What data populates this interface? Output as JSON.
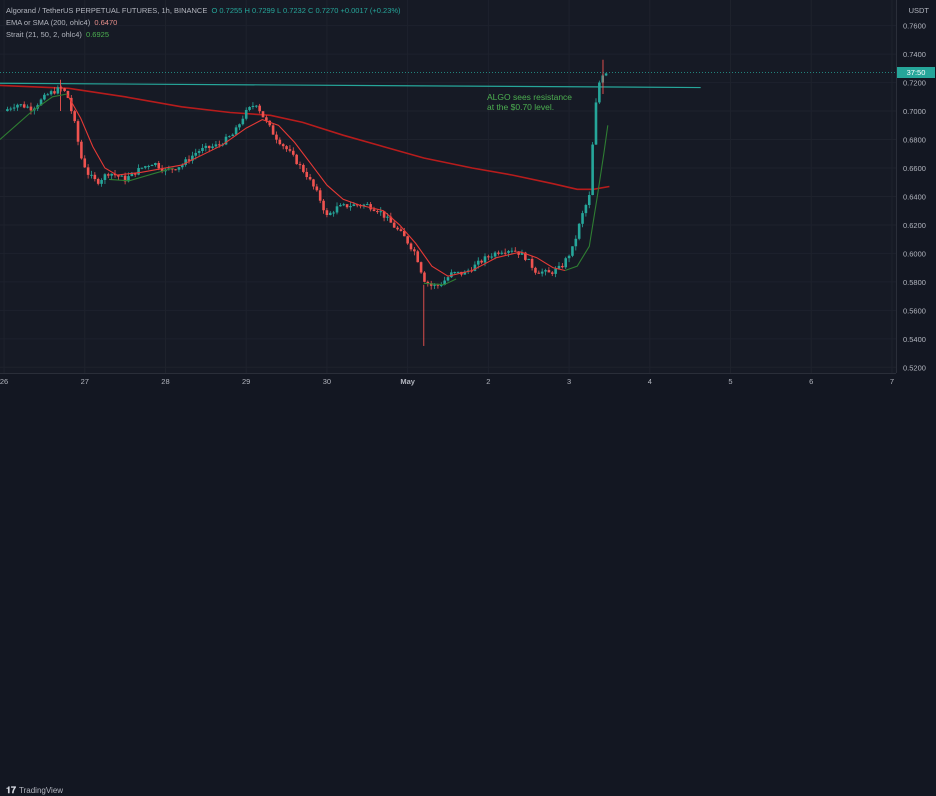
{
  "header": {
    "symbol": "Algorand / TetherUS PERPETUAL FUTURES, 1h, BINANCE",
    "ohlc": "O 0.7255 H 0.7299 L 0.7232 C 0.7270 +0.0017 (+0.23%)",
    "indicator1_label": "EMA or SMA (200, ohlc4)",
    "indicator1_value": "0.6470",
    "indicator2_label": "Strait (21, 50, 2, ohlc4)",
    "indicator2_value": "0.6925"
  },
  "currency": "USDT",
  "price_badge": "37:50",
  "annotation": "ALGO sees resistance\nat the $0.70 level.",
  "footer_brand": "TradingView",
  "colors": {
    "bull": "#26a69a",
    "bear": "#ef5350",
    "ema": "#b71c1c",
    "strait": "#2e7d32",
    "resistance": "#26a69a",
    "annotation": "#4caf50"
  },
  "chart_data": {
    "type": "candlestick",
    "y_ticks": [
      "0.7600",
      "0.7400",
      "0.7200",
      "0.7000",
      "0.6800",
      "0.6600",
      "0.6400",
      "0.6200",
      "0.6000",
      "0.5800",
      "0.5600",
      "0.5400",
      "0.5200"
    ],
    "x_ticks": [
      {
        "label": "26",
        "day": 0
      },
      {
        "label": "27",
        "day": 1
      },
      {
        "label": "28",
        "day": 2
      },
      {
        "label": "29",
        "day": 3
      },
      {
        "label": "30",
        "day": 4
      },
      {
        "label": "May",
        "day": 5
      },
      {
        "label": "2",
        "day": 6
      },
      {
        "label": "3",
        "day": 7
      },
      {
        "label": "4",
        "day": 8
      },
      {
        "label": "5",
        "day": 9
      },
      {
        "label": "6",
        "day": 10
      },
      {
        "label": "7",
        "day": 11
      }
    ],
    "ylim": [
      0.516,
      0.778
    ],
    "xlim_days": [
      -0.05,
      11.05
    ],
    "current_price": 0.727,
    "resistance_line": {
      "x0": -0.05,
      "y0": 0.7195,
      "x1": 8.63,
      "y1": 0.7165
    },
    "price_path": [
      [
        0.0,
        0.7
      ],
      [
        0.15,
        0.705
      ],
      [
        0.35,
        0.702
      ],
      [
        0.55,
        0.712
      ],
      [
        0.7,
        0.716
      ],
      [
        0.78,
        0.712
      ],
      [
        0.88,
        0.69
      ],
      [
        0.95,
        0.668
      ],
      [
        1.05,
        0.655
      ],
      [
        1.15,
        0.65
      ],
      [
        1.3,
        0.657
      ],
      [
        1.5,
        0.652
      ],
      [
        1.7,
        0.66
      ],
      [
        1.85,
        0.664
      ],
      [
        2.0,
        0.658
      ],
      [
        2.2,
        0.662
      ],
      [
        2.4,
        0.672
      ],
      [
        2.65,
        0.676
      ],
      [
        2.85,
        0.684
      ],
      [
        2.98,
        0.698
      ],
      [
        3.12,
        0.706
      ],
      [
        3.22,
        0.695
      ],
      [
        3.35,
        0.683
      ],
      [
        3.55,
        0.67
      ],
      [
        3.75,
        0.655
      ],
      [
        3.9,
        0.64
      ],
      [
        4.0,
        0.626
      ],
      [
        4.12,
        0.632
      ],
      [
        4.3,
        0.634
      ],
      [
        4.5,
        0.634
      ],
      [
        4.65,
        0.63
      ],
      [
        4.78,
        0.622
      ],
      [
        4.95,
        0.612
      ],
      [
        5.1,
        0.6
      ],
      [
        5.2,
        0.582
      ],
      [
        5.3,
        0.577
      ],
      [
        5.4,
        0.578
      ],
      [
        5.55,
        0.586
      ],
      [
        5.7,
        0.586
      ],
      [
        5.85,
        0.592
      ],
      [
        6.0,
        0.598
      ],
      [
        6.15,
        0.602
      ],
      [
        6.3,
        0.603
      ],
      [
        6.45,
        0.598
      ],
      [
        6.58,
        0.588
      ],
      [
        6.75,
        0.586
      ],
      [
        6.9,
        0.59
      ],
      [
        7.05,
        0.604
      ],
      [
        7.15,
        0.625
      ],
      [
        7.25,
        0.64
      ],
      [
        7.32,
        0.7
      ],
      [
        7.38,
        0.722
      ],
      [
        7.43,
        0.728
      ],
      [
        7.48,
        0.727
      ]
    ],
    "ema200": [
      [
        -0.05,
        0.718
      ],
      [
        0.8,
        0.716
      ],
      [
        1.5,
        0.71
      ],
      [
        2.2,
        0.703
      ],
      [
        2.8,
        0.699
      ],
      [
        3.3,
        0.697
      ],
      [
        3.7,
        0.692
      ],
      [
        4.2,
        0.683
      ],
      [
        4.7,
        0.675
      ],
      [
        5.2,
        0.667
      ],
      [
        5.8,
        0.66
      ],
      [
        6.3,
        0.655
      ],
      [
        6.8,
        0.649
      ],
      [
        7.1,
        0.645
      ],
      [
        7.3,
        0.645
      ],
      [
        7.5,
        0.647
      ]
    ],
    "strait_red": [
      [
        0.78,
        0.712
      ],
      [
        0.95,
        0.695
      ],
      [
        1.1,
        0.675
      ],
      [
        1.25,
        0.66
      ],
      [
        1.4,
        0.655
      ],
      [
        1.7,
        0.657
      ],
      [
        2.2,
        0.662
      ],
      [
        2.7,
        0.676
      ],
      [
        3.0,
        0.688
      ],
      [
        3.2,
        0.694
      ],
      [
        3.4,
        0.69
      ],
      [
        3.6,
        0.678
      ],
      [
        3.8,
        0.663
      ],
      [
        4.0,
        0.648
      ],
      [
        4.2,
        0.638
      ],
      [
        4.4,
        0.634
      ],
      [
        4.7,
        0.63
      ],
      [
        4.9,
        0.62
      ],
      [
        5.1,
        0.607
      ],
      [
        5.3,
        0.591
      ],
      [
        5.5,
        0.584
      ],
      [
        5.8,
        0.588
      ],
      [
        6.1,
        0.597
      ],
      [
        6.4,
        0.601
      ],
      [
        6.6,
        0.597
      ],
      [
        6.8,
        0.59
      ],
      [
        6.95,
        0.588
      ]
    ],
    "strait_green": [
      [
        -0.05,
        0.68
      ],
      [
        0.15,
        0.69
      ],
      [
        0.35,
        0.7
      ],
      [
        0.6,
        0.71
      ],
      [
        0.78,
        0.712
      ],
      [
        1.3,
        0.652
      ],
      [
        1.55,
        0.651
      ],
      [
        1.85,
        0.656
      ],
      [
        2.1,
        0.66
      ],
      [
        3.4,
        0.69
      ],
      [
        5.2,
        0.579
      ],
      [
        5.45,
        0.578
      ],
      [
        5.6,
        0.582
      ],
      [
        6.95,
        0.588
      ],
      [
        7.1,
        0.591
      ],
      [
        7.25,
        0.605
      ],
      [
        7.35,
        0.64
      ],
      [
        7.43,
        0.67
      ],
      [
        7.48,
        0.69
      ]
    ]
  }
}
